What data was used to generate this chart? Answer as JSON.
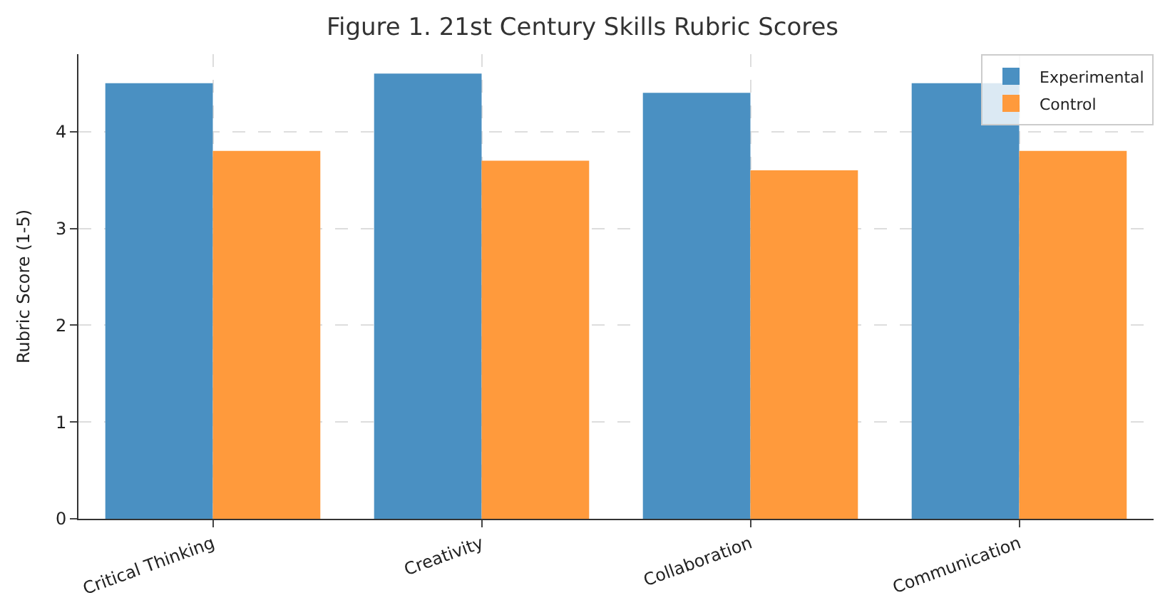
{
  "chart_data": {
    "type": "bar",
    "title": "Figure 1. 21st Century Skills Rubric Scores",
    "ylabel": "Rubric Score (1-5)",
    "categories": [
      "Critical Thinking",
      "Creativity",
      "Collaboration",
      "Communication"
    ],
    "series": [
      {
        "name": "Experimental",
        "color": "#4a90c2",
        "values": [
          4.5,
          4.6,
          4.4,
          4.5
        ]
      },
      {
        "name": "Control",
        "color": "#ff9a3c",
        "values": [
          3.8,
          3.7,
          3.6,
          3.8
        ]
      }
    ],
    "ylim": [
      0,
      4.8
    ],
    "yticks": [
      0,
      1,
      2,
      3,
      4
    ],
    "grid": true,
    "legend": "top right"
  }
}
